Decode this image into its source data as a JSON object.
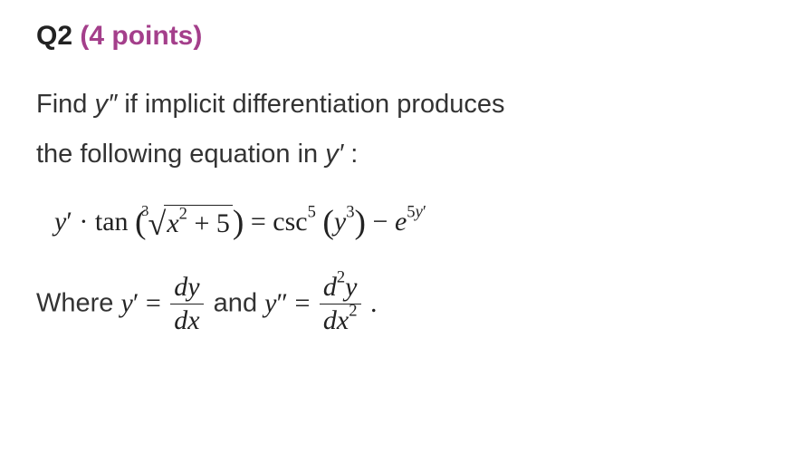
{
  "heading": {
    "label": "Q2",
    "points": "(4 points)"
  },
  "prose": {
    "line1a": "Find ",
    "ydp": "y″",
    "line1b": " if implicit differentiation produces",
    "line2a": "the following equation in ",
    "ysp": "y′",
    "line2b": " :"
  },
  "equation": {
    "y": "y",
    "prime": "′",
    "dot": " · ",
    "tan": "tan",
    "root_index": "3",
    "x": "x",
    "two": "2",
    "plus5": " + 5",
    "eq": " = ",
    "csc": "csc",
    "five": "5",
    "y3": "y",
    "three": "3",
    "minus": " − ",
    "e": "e",
    "exp5": "5",
    "expy": "y",
    "expprime": "′"
  },
  "where": {
    "text1": "Where ",
    "y": "y",
    "prime": "′",
    "eq": " = ",
    "num1": "dy",
    "den1": "dx",
    "and": " and ",
    "dprime": "″",
    "d2y_d": "d",
    "d2y_two": "2",
    "d2y_y": "y",
    "dx2_d": "dx",
    "dx2_two": "2",
    "period": " ."
  },
  "style": {
    "accent": "#a43f8b",
    "text": "#222222",
    "body_text": "#333333",
    "background": "#ffffff",
    "heading_fontsize": 30,
    "prose_fontsize": 29,
    "eq_fontsize": 30
  }
}
